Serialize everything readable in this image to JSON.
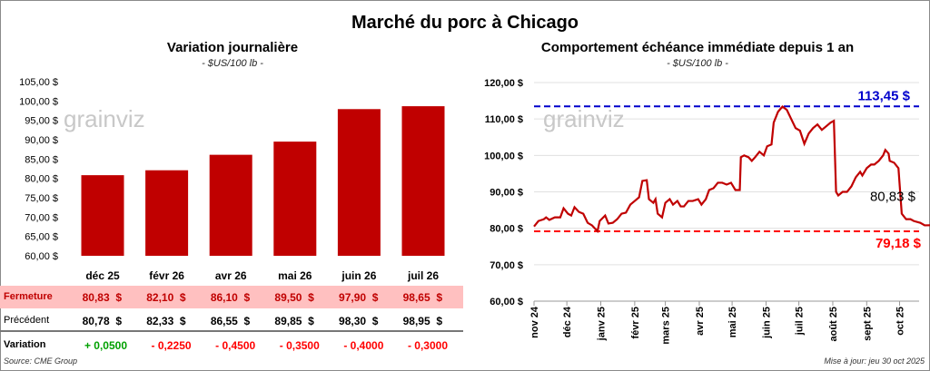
{
  "title": "Marché du porc à Chicago",
  "colors": {
    "bar": "#c00000",
    "line": "#c00000",
    "high": "#0000cc",
    "low": "#ff0000",
    "fermeture_bg": "#ffc0c0",
    "positive": "#00a000",
    "negative": "#ff0000"
  },
  "watermark": "grainviz",
  "source": "Source: CME Group",
  "updated": "Mise à jour: jeu 30 oct 2025",
  "table": {
    "rows": [
      {
        "label": "Fermeture",
        "values": [
          "80,83  $",
          "82,10  $",
          "86,10  $",
          "89,50  $",
          "97,90  $",
          "98,65  $"
        ]
      },
      {
        "label": "Précédent",
        "values": [
          "80,78  $",
          "82,33  $",
          "86,55  $",
          "89,85  $",
          "98,30  $",
          "98,95  $"
        ]
      },
      {
        "label": "Variation",
        "values": [
          "+ 0,0500",
          "- 0,2250",
          "- 0,4500",
          "- 0,3500",
          "- 0,4000",
          "- 0,3000"
        ]
      }
    ]
  },
  "chart_data": [
    {
      "type": "bar",
      "title": "Variation journalière",
      "subtitle": "- $US/100 lb -",
      "categories": [
        "déc 25",
        "févr 26",
        "avr 26",
        "mai 26",
        "juin 26",
        "juil 26"
      ],
      "values": [
        80.83,
        82.1,
        86.1,
        89.5,
        97.9,
        98.65
      ],
      "ylim": [
        60,
        105
      ],
      "yticks": [
        "60,00 $",
        "65,00 $",
        "70,00 $",
        "75,00 $",
        "80,00 $",
        "85,00 $",
        "90,00 $",
        "95,00 $",
        "100,00 $",
        "105,00 $"
      ],
      "grid": false
    },
    {
      "type": "line",
      "title": "Comportement échéance immédiate depuis 1 an",
      "subtitle": "- $US/100 lb -",
      "ylim": [
        60,
        120
      ],
      "yticks": [
        "60,00 $",
        "70,00 $",
        "80,00 $",
        "90,00 $",
        "100,00 $",
        "110,00 $",
        "120,00 $"
      ],
      "grid": true,
      "xticks": [
        "nov 24",
        "déc 24",
        "janv 25",
        "févr 25",
        "mars 25",
        "avr 25",
        "mai 25",
        "juin 25",
        "juil 25",
        "août 25",
        "sept 25",
        "oct 25"
      ],
      "high": {
        "value": 113.45,
        "label": "113,45 $"
      },
      "low": {
        "value": 79.18,
        "label": "79,18 $"
      },
      "last": {
        "value": 80.83,
        "label": "80,83 $"
      },
      "series": [
        [
          "2024-11-01",
          80.5
        ],
        [
          "2024-11-05",
          82
        ],
        [
          "2024-11-10",
          82.5
        ],
        [
          "2024-11-12",
          83
        ],
        [
          "2024-11-15",
          82.3
        ],
        [
          "2024-11-20",
          83
        ],
        [
          "2024-11-25",
          83
        ],
        [
          "2024-11-28",
          85.5
        ],
        [
          "2024-12-02",
          84
        ],
        [
          "2024-12-05",
          83.5
        ],
        [
          "2024-12-08",
          85.8
        ],
        [
          "2024-12-12",
          84.5
        ],
        [
          "2024-12-16",
          84
        ],
        [
          "2024-12-20",
          81.5
        ],
        [
          "2024-12-24",
          80.8
        ],
        [
          "2024-12-29",
          79.2
        ],
        [
          "2024-12-31",
          82
        ],
        [
          "2025-01-05",
          83.5
        ],
        [
          "2025-01-08",
          81.3
        ],
        [
          "2025-01-12",
          81.5
        ],
        [
          "2025-01-16",
          82.5
        ],
        [
          "2025-01-20",
          84
        ],
        [
          "2025-01-24",
          84.3
        ],
        [
          "2025-01-28",
          86.5
        ],
        [
          "2025-02-01",
          87.5
        ],
        [
          "2025-02-05",
          88.5
        ],
        [
          "2025-02-08",
          93
        ],
        [
          "2025-02-12",
          93.2
        ],
        [
          "2025-02-14",
          88
        ],
        [
          "2025-02-18",
          87
        ],
        [
          "2025-02-20",
          88
        ],
        [
          "2025-02-22",
          84
        ],
        [
          "2025-02-26",
          83
        ],
        [
          "2025-03-01",
          87
        ],
        [
          "2025-03-05",
          88
        ],
        [
          "2025-03-08",
          86.5
        ],
        [
          "2025-03-12",
          87.5
        ],
        [
          "2025-03-15",
          86
        ],
        [
          "2025-03-18",
          86
        ],
        [
          "2025-03-22",
          87.5
        ],
        [
          "2025-03-26",
          87.5
        ],
        [
          "2025-03-31",
          88
        ],
        [
          "2025-04-03",
          86.5
        ],
        [
          "2025-04-07",
          88
        ],
        [
          "2025-04-10",
          90.5
        ],
        [
          "2025-04-14",
          91
        ],
        [
          "2025-04-18",
          92.5
        ],
        [
          "2025-04-22",
          92.5
        ],
        [
          "2025-04-26",
          92
        ],
        [
          "2025-04-30",
          92.5
        ],
        [
          "2025-05-04",
          90.5
        ],
        [
          "2025-05-08",
          90.5
        ],
        [
          "2025-05-09",
          99.5
        ],
        [
          "2025-05-12",
          100
        ],
        [
          "2025-05-16",
          99.5
        ],
        [
          "2025-05-19",
          98.5
        ],
        [
          "2025-05-22",
          99.5
        ],
        [
          "2025-05-26",
          101
        ],
        [
          "2025-05-30",
          100
        ],
        [
          "2025-06-02",
          102.5
        ],
        [
          "2025-06-06",
          103
        ],
        [
          "2025-06-08",
          109
        ],
        [
          "2025-06-12",
          112
        ],
        [
          "2025-06-16",
          113.4
        ],
        [
          "2025-06-20",
          112.5
        ],
        [
          "2025-06-24",
          110
        ],
        [
          "2025-06-28",
          107.5
        ],
        [
          "2025-07-02",
          106.8
        ],
        [
          "2025-07-06",
          103.2
        ],
        [
          "2025-07-10",
          106
        ],
        [
          "2025-07-14",
          107.5
        ],
        [
          "2025-07-18",
          108.5
        ],
        [
          "2025-07-22",
          107
        ],
        [
          "2025-07-26",
          108
        ],
        [
          "2025-07-30",
          109
        ],
        [
          "2025-08-02",
          109.5
        ],
        [
          "2025-08-04",
          90
        ],
        [
          "2025-08-06",
          89
        ],
        [
          "2025-08-10",
          90
        ],
        [
          "2025-08-14",
          90
        ],
        [
          "2025-08-18",
          91.5
        ],
        [
          "2025-08-22",
          94
        ],
        [
          "2025-08-26",
          95.5
        ],
        [
          "2025-08-28",
          94.5
        ],
        [
          "2025-09-01",
          96.5
        ],
        [
          "2025-09-05",
          97.5
        ],
        [
          "2025-09-08",
          97.5
        ],
        [
          "2025-09-12",
          98.5
        ],
        [
          "2025-09-16",
          100
        ],
        [
          "2025-09-18",
          101.5
        ],
        [
          "2025-09-21",
          100.5
        ],
        [
          "2025-09-22",
          98.5
        ],
        [
          "2025-09-26",
          98
        ],
        [
          "2025-09-30",
          96.5
        ],
        [
          "2025-10-03",
          84
        ],
        [
          "2025-10-07",
          82.5
        ],
        [
          "2025-10-11",
          82.5
        ],
        [
          "2025-10-14",
          82
        ],
        [
          "2025-10-20",
          81.5
        ],
        [
          "2025-10-24",
          80.8
        ],
        [
          "2025-10-29",
          80.83
        ]
      ]
    }
  ]
}
